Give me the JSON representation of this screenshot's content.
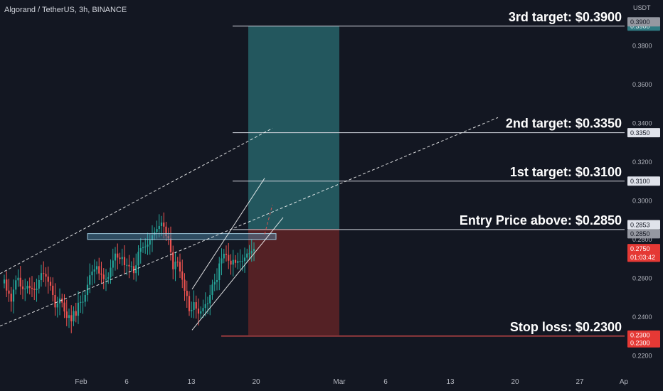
{
  "header": {
    "symbol_title": "Algorand / TetherUS, 3h, BINANCE",
    "currency": "USDT"
  },
  "colors": {
    "bg": "#131722",
    "up": "#26a69a",
    "down": "#ef5350",
    "label": "#ffffff",
    "axis_text": "#b2b5be",
    "target_zone": "#2a6e73",
    "stop_zone": "#6b2527",
    "stop_line": "#ef5350",
    "zone_box": "#4f8fb0"
  },
  "chart_data": {
    "type": "candlestick",
    "title": "Algorand / TetherUS, 3h, BINANCE",
    "ylabel": "USDT",
    "ylim": [
      0.218,
      0.398
    ],
    "y_ticks": [
      "0.2200",
      "0.2400",
      "0.2600",
      "0.2800",
      "0.3000",
      "0.3200",
      "0.3400",
      "0.3600",
      "0.3800"
    ],
    "x_ticks": [
      "Feb",
      "6",
      "13",
      "20",
      "Mar",
      "6",
      "13",
      "20",
      "27",
      "Ap"
    ],
    "annotations": [
      {
        "text": "3rd target: $0.3900",
        "price": 0.39
      },
      {
        "text": "2nd target: $0.3350",
        "price": 0.335
      },
      {
        "text": "1st target: $0.3100",
        "price": 0.31
      },
      {
        "text": "Entry Price above: $0.2850",
        "price": 0.285
      },
      {
        "text": "Stop loss: $0.2300",
        "price": 0.23
      }
    ],
    "price_labels": [
      {
        "text": "0.3900",
        "price": 0.39,
        "style": "teal"
      },
      {
        "text": "0.3900",
        "price": 0.3922,
        "style": "gray"
      },
      {
        "text": "0.3350",
        "price": 0.335,
        "style": "light"
      },
      {
        "text": "0.3100",
        "price": 0.31,
        "style": "light"
      },
      {
        "text": "0.2853",
        "price": 0.2853,
        "style": "light",
        "offset": -1
      },
      {
        "text": "0.2850",
        "price": 0.285,
        "style": "gray",
        "offset": 1
      },
      {
        "text": "0.2750",
        "price": 0.2752,
        "style": "red"
      },
      {
        "text": "01:03:42",
        "price": 0.2707,
        "style": "red"
      },
      {
        "text": "0.2300",
        "price": 0.2305,
        "style": "red"
      },
      {
        "text": "0.2300",
        "price": 0.2265,
        "style": "red"
      }
    ],
    "candles_close": [
      0.2592,
      0.2535,
      0.2519,
      0.2478,
      0.254,
      0.2588,
      0.2601,
      0.2556,
      0.2542,
      0.2545,
      0.2559,
      0.2549,
      0.2544,
      0.2538,
      0.2545,
      0.2589,
      0.2625,
      0.2621,
      0.2607,
      0.258,
      0.256,
      0.2512,
      0.2448,
      0.2469,
      0.2494,
      0.2473,
      0.2427,
      0.2394,
      0.2408,
      0.2376,
      0.2429,
      0.2405,
      0.2472,
      0.2476,
      0.2477,
      0.2512,
      0.2565,
      0.2614,
      0.2633,
      0.2644,
      0.2661,
      0.2623,
      0.2617,
      0.2594,
      0.2595,
      0.2604,
      0.2653,
      0.269,
      0.2726,
      0.2705,
      0.2698,
      0.2708,
      0.2666,
      0.2667,
      0.266,
      0.2661,
      0.2625,
      0.2665,
      0.2735,
      0.2754,
      0.2759,
      0.2762,
      0.2772,
      0.2795,
      0.282,
      0.2837,
      0.2853,
      0.2868,
      0.2886,
      0.2865,
      0.2816,
      0.2804,
      0.2733,
      0.2645,
      0.2684,
      0.2683,
      0.2634,
      0.2591,
      0.2534,
      0.2507,
      0.2429,
      0.2435,
      0.2475,
      0.2442,
      0.2416,
      0.2428,
      0.2445,
      0.2465,
      0.2469,
      0.2512,
      0.2566,
      0.2579,
      0.2589,
      0.2675,
      0.2701,
      0.2725,
      0.2719,
      0.2689,
      0.2669,
      0.2693,
      0.2678,
      0.2687,
      0.2687,
      0.2687,
      0.2705,
      0.2726,
      0.2727,
      0.2739,
      0.275
    ],
    "lines": [
      {
        "name": "channel-upper",
        "dashed": true,
        "from": [
          "pre-Feb",
          0.2622
        ],
        "to": [
          "Feb 22",
          0.3373
        ]
      },
      {
        "name": "channel-lower",
        "dashed": true,
        "from": [
          "pre-Feb",
          0.2352
        ],
        "to": [
          "Mar 24",
          0.3428
        ]
      },
      {
        "name": "wedge-upper",
        "dashed": false,
        "from": [
          "Feb 13",
          0.2542
        ],
        "to": [
          "Feb 21",
          0.3115
        ]
      },
      {
        "name": "wedge-lower",
        "dashed": false,
        "from": [
          "Feb 13",
          0.2331
        ],
        "to": [
          "Feb 23",
          0.2912
        ]
      },
      {
        "name": "breakout-projection",
        "dashed": true,
        "from": [
          "Feb 21",
          0.2825
        ],
        "to": [
          "Feb 22",
          0.2978
        ]
      }
    ],
    "zones": [
      {
        "name": "resistance-zone",
        "top": 0.2829,
        "bottom": 0.2799
      },
      {
        "name": "target-zone",
        "top": 0.39,
        "bottom": 0.2853
      },
      {
        "name": "stop-zone",
        "top": 0.2853,
        "bottom": 0.2305
      }
    ],
    "grid": false
  }
}
